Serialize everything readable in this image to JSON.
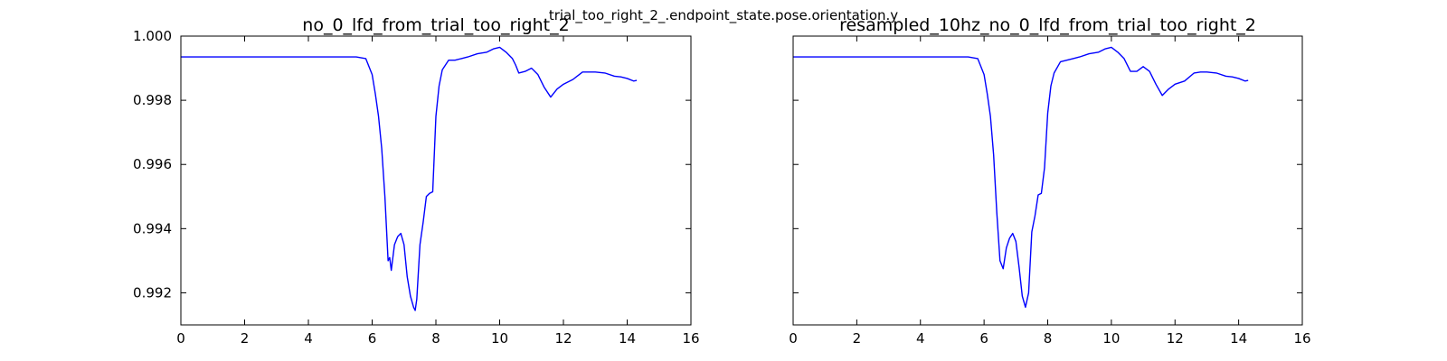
{
  "figure": {
    "suptitle": "trial_too_right_2_.endpoint_state.pose.orientation.y"
  },
  "chart_data": [
    {
      "type": "line",
      "title": "no_0_lfd_from_trial_too_right_2",
      "xlabel": "",
      "ylabel": "",
      "xlim": [
        0,
        16
      ],
      "ylim": [
        0.991,
        1.0
      ],
      "xticks": [
        0,
        2,
        4,
        6,
        8,
        10,
        12,
        14,
        16
      ],
      "yticks": [
        0.992,
        0.994,
        0.996,
        0.998,
        1.0
      ],
      "ytick_labels": [
        "0.992",
        "0.994",
        "0.996",
        "0.998",
        "1.000"
      ],
      "grid": false,
      "legend": "none",
      "series": [
        {
          "color": "#0000ff",
          "x": [
            0,
            1,
            2,
            3,
            4,
            5,
            5.5,
            5.8,
            6.0,
            6.1,
            6.2,
            6.3,
            6.4,
            6.5,
            6.55,
            6.6,
            6.7,
            6.8,
            6.9,
            7.0,
            7.05,
            7.1,
            7.2,
            7.3,
            7.35,
            7.4,
            7.5,
            7.6,
            7.7,
            7.8,
            7.9,
            8.0,
            8.1,
            8.2,
            8.4,
            8.6,
            8.8,
            9.0,
            9.3,
            9.6,
            9.8,
            10.0,
            10.2,
            10.4,
            10.5,
            10.6,
            10.8,
            11.0,
            11.2,
            11.4,
            11.6,
            11.8,
            12.0,
            12.3,
            12.6,
            12.8,
            13.0,
            13.3,
            13.6,
            13.8,
            14.0,
            14.2,
            14.3
          ],
          "y": [
            0.99935,
            0.99935,
            0.99935,
            0.99935,
            0.99935,
            0.99935,
            0.99935,
            0.9993,
            0.9988,
            0.9982,
            0.9975,
            0.9965,
            0.995,
            0.993,
            0.9931,
            0.9927,
            0.9935,
            0.99375,
            0.99385,
            0.9935,
            0.993,
            0.9925,
            0.9919,
            0.99155,
            0.99145,
            0.9918,
            0.9935,
            0.9942,
            0.995,
            0.9951,
            0.99515,
            0.9975,
            0.99845,
            0.99895,
            0.99925,
            0.99925,
            0.9993,
            0.99935,
            0.99945,
            0.9995,
            0.9996,
            0.99965,
            0.9995,
            0.9993,
            0.9991,
            0.99885,
            0.9989,
            0.999,
            0.9988,
            0.9984,
            0.9981,
            0.99835,
            0.9985,
            0.99865,
            0.99888,
            0.99888,
            0.99888,
            0.99885,
            0.99875,
            0.99873,
            0.99868,
            0.9986,
            0.99862
          ]
        }
      ]
    },
    {
      "type": "line",
      "title": "resampled_10hz_no_0_lfd_from_trial_too_right_2",
      "xlabel": "",
      "ylabel": "",
      "xlim": [
        0,
        16
      ],
      "ylim": [
        0.991,
        1.0
      ],
      "xticks": [
        0,
        2,
        4,
        6,
        8,
        10,
        12,
        14,
        16
      ],
      "yticks": [
        0.992,
        0.994,
        0.996,
        0.998,
        1.0
      ],
      "ytick_labels": [],
      "grid": false,
      "legend": "none",
      "series": [
        {
          "color": "#0000ff",
          "x": [
            0,
            1,
            2,
            3,
            4,
            5,
            5.5,
            5.8,
            6.0,
            6.1,
            6.2,
            6.3,
            6.4,
            6.5,
            6.6,
            6.7,
            6.8,
            6.9,
            7.0,
            7.1,
            7.2,
            7.3,
            7.4,
            7.5,
            7.6,
            7.7,
            7.8,
            7.9,
            8.0,
            8.1,
            8.2,
            8.4,
            8.6,
            8.8,
            9.0,
            9.3,
            9.6,
            9.8,
            10.0,
            10.2,
            10.4,
            10.6,
            10.8,
            11.0,
            11.2,
            11.4,
            11.6,
            11.8,
            12.0,
            12.3,
            12.6,
            12.8,
            13.0,
            13.3,
            13.6,
            13.8,
            14.0,
            14.2,
            14.3
          ],
          "y": [
            0.99935,
            0.99935,
            0.99935,
            0.99935,
            0.99935,
            0.99935,
            0.99935,
            0.9993,
            0.9988,
            0.9982,
            0.9975,
            0.9963,
            0.9945,
            0.993,
            0.99275,
            0.9934,
            0.9937,
            0.99385,
            0.9936,
            0.9928,
            0.9919,
            0.99155,
            0.992,
            0.9939,
            0.9944,
            0.99505,
            0.9951,
            0.9959,
            0.9976,
            0.99845,
            0.99885,
            0.9992,
            0.99925,
            0.9993,
            0.99935,
            0.99945,
            0.9995,
            0.9996,
            0.99965,
            0.9995,
            0.9993,
            0.9989,
            0.9989,
            0.99905,
            0.9989,
            0.9985,
            0.99815,
            0.99835,
            0.9985,
            0.9986,
            0.99885,
            0.99888,
            0.99888,
            0.99885,
            0.99875,
            0.99873,
            0.99868,
            0.9986,
            0.99862
          ]
        }
      ]
    }
  ]
}
